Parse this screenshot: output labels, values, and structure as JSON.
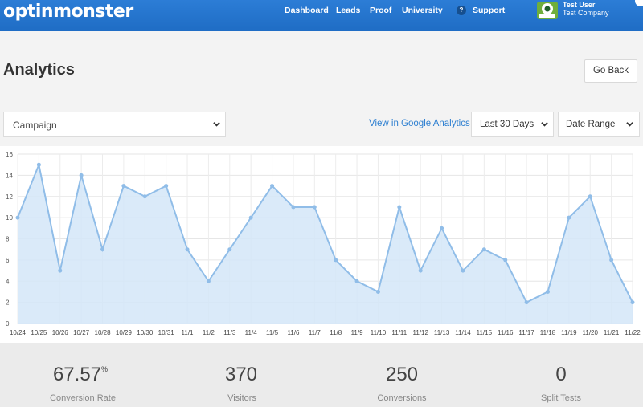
{
  "header": {
    "logo_text": "optinmonster",
    "nav": [
      "Dashboard",
      "Leads",
      "Proof",
      "University"
    ],
    "support_label": "Support",
    "help_icon": "?",
    "user_name": "Test User",
    "user_company": "Test Company",
    "bar_color": "#2277cc"
  },
  "page": {
    "title": "Analytics",
    "back_label": "Go Back"
  },
  "filters": {
    "campaign_label": "Campaign",
    "ga_link": "View in Google Analytics",
    "range_label": "Last 30 Days",
    "date_range_label": "Date Range"
  },
  "chart_data": {
    "type": "area",
    "x": [
      "10/24",
      "10/25",
      "10/26",
      "10/27",
      "10/28",
      "10/29",
      "10/30",
      "10/31",
      "11/1",
      "11/2",
      "11/3",
      "11/4",
      "11/5",
      "11/6",
      "11/7",
      "11/8",
      "11/9",
      "11/10",
      "11/11",
      "11/12",
      "11/13",
      "11/14",
      "11/15",
      "11/16",
      "11/17",
      "11/18",
      "11/19",
      "11/20",
      "11/21",
      "11/22"
    ],
    "series": [
      {
        "values": [
          10,
          15,
          5,
          14,
          7,
          13,
          12,
          13,
          7,
          4,
          7,
          10,
          13,
          11,
          11,
          6,
          4,
          3,
          11,
          5,
          9,
          5,
          7,
          6,
          2,
          3,
          10,
          12,
          6,
          2
        ]
      }
    ],
    "ylim": [
      0,
      16
    ],
    "yticks": [
      0,
      2,
      4,
      6,
      8,
      10,
      12,
      14,
      16
    ],
    "grid": true,
    "line_color": "#90bde8",
    "fill_color": "#d3e6f8"
  },
  "stats": [
    {
      "value": "67.57",
      "unit": "%",
      "label": "Conversion Rate"
    },
    {
      "value": "370",
      "unit": "",
      "label": "Visitors"
    },
    {
      "value": "250",
      "unit": "",
      "label": "Conversions"
    },
    {
      "value": "0",
      "unit": "",
      "label": "Split Tests"
    }
  ]
}
